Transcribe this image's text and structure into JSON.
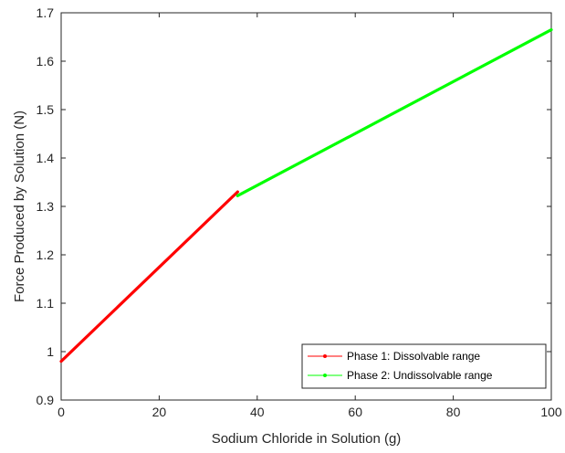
{
  "chart_data": {
    "type": "line",
    "title": "",
    "xlabel": "Sodium Chloride in Solution (g)",
    "ylabel": "Force Produced by Solution (N)",
    "xlim": [
      0,
      100
    ],
    "ylim": [
      0.9,
      1.7
    ],
    "xticks": [
      0,
      20,
      40,
      60,
      80,
      100
    ],
    "xtick_labels": [
      "0",
      "20",
      "40",
      "60",
      "80",
      "100"
    ],
    "yticks": [
      0.9,
      1.0,
      1.1,
      1.2,
      1.3,
      1.4,
      1.5,
      1.6,
      1.7
    ],
    "ytick_labels": [
      "0.9",
      "1",
      "1.1",
      "1.2",
      "1.3",
      "1.4",
      "1.5",
      "1.6",
      "1.7"
    ],
    "grid": false,
    "legend_position": "bottom-right",
    "series": [
      {
        "name": "Phase 1: Dissolvable range",
        "color": "#ff0000",
        "x": [
          0,
          36
        ],
        "y": [
          0.98,
          1.33
        ]
      },
      {
        "name": "Phase 2: Undissolvable range",
        "color": "#00ff00",
        "x": [
          36,
          100
        ],
        "y": [
          1.322,
          1.665
        ]
      }
    ]
  }
}
